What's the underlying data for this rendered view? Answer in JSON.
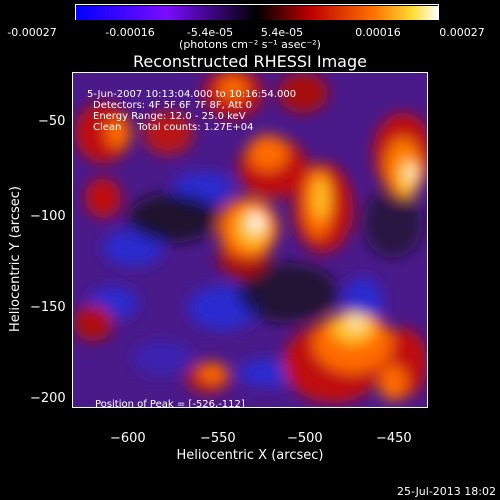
{
  "colorbar": {
    "ticks": [
      "-0.00027",
      "-0.00016",
      "-5.4e-05",
      "5.4e-05",
      "0.00016",
      "0.00027"
    ],
    "unit_label": "(photons cm⁻² s⁻¹ asec⁻²)",
    "colors": [
      "#0000ff",
      "#7a0cff",
      "#000000",
      "#cc0000",
      "#ff7a00",
      "#ffffff"
    ]
  },
  "plot": {
    "title": "Reconstructed RHESSI Image",
    "annotations": [
      "5-Jun-2007 10:13:04.000 to 10:16:54.000",
      "Detectors: 4F 5F 6F 7F 8F, Att 0",
      "Energy Range: 12.0 - 25.0 keV",
      "Clean     Total counts: 1.27E+04"
    ],
    "peak_label": "Position of Peak = [-526,-112]",
    "x_axis": {
      "label": "Heliocentric X (arcsec)",
      "ticks": [
        "−600",
        "−550",
        "−500",
        "−450"
      ]
    },
    "y_axis": {
      "label": "Heliocentric Y (arcsec)",
      "ticks": [
        "−50",
        "−100",
        "−150",
        "−200"
      ]
    }
  },
  "footer": {
    "timestamp": "25-Jul-2013 18:02"
  }
}
